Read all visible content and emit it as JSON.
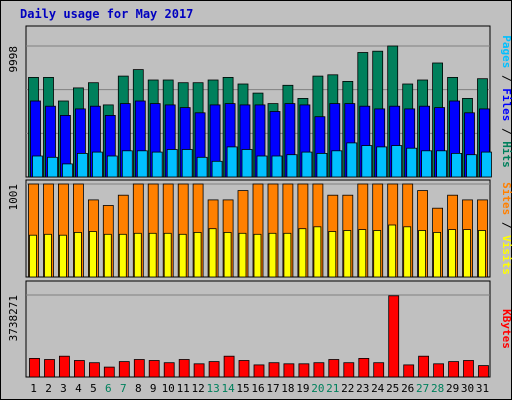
{
  "chart_data": {
    "type": "bar",
    "title": "Daily usage for May 2017",
    "categories": [
      "1",
      "2",
      "3",
      "4",
      "5",
      "6",
      "7",
      "8",
      "9",
      "10",
      "11",
      "12",
      "13",
      "14",
      "15",
      "16",
      "17",
      "18",
      "19",
      "20",
      "21",
      "22",
      "23",
      "24",
      "25",
      "26",
      "27",
      "28",
      "29",
      "30",
      "31"
    ],
    "weekend_days": [
      "6",
      "7",
      "13",
      "14",
      "20",
      "21",
      "27",
      "28"
    ],
    "colors": {
      "hits": "#00805c",
      "files": "#0000ff",
      "pages": "#00c0ff",
      "visits": "#ffff00",
      "sites": "#ff8000",
      "kbytes": "#ff0000",
      "weekday": "#000000",
      "weekend": "#00805c",
      "title": "#0000c0"
    },
    "panels": [
      {
        "name": "hits-files-pages",
        "tick_label": "9998",
        "max": 9998,
        "side_label": [
          {
            "text": "Pages",
            "color": "#00c0ff"
          },
          {
            "text": " / ",
            "color": "#000000"
          },
          {
            "text": "Files",
            "color": "#0000ff"
          },
          {
            "text": " / ",
            "color": "#000000"
          },
          {
            "text": "Hits",
            "color": "#00805c"
          }
        ],
        "series": [
          {
            "name": "Hits",
            "color": "#00805c",
            "values": [
              7600,
              7600,
              5800,
              6800,
              7200,
              5500,
              7700,
              8200,
              7400,
              7400,
              7200,
              7200,
              7400,
              7600,
              7100,
              6400,
              5600,
              7000,
              6000,
              7700,
              7800,
              7300,
              9500,
              9600,
              10200,
              7100,
              7400,
              8700,
              7600,
              6000,
              7500
            ]
          },
          {
            "name": "Files",
            "color": "#0000ff",
            "values": [
              5800,
              5400,
              4700,
              5200,
              5400,
              4700,
              5600,
              5800,
              5600,
              5500,
              5300,
              4900,
              5500,
              5600,
              5500,
              5500,
              5000,
              5600,
              5500,
              4600,
              5600,
              5600,
              5400,
              5200,
              5400,
              5200,
              5400,
              5300,
              5800,
              4900,
              5200
            ]
          },
          {
            "name": "Pages",
            "color": "#00c0ff",
            "values": [
              1600,
              1500,
              1000,
              1800,
              1900,
              1600,
              2000,
              2000,
              1900,
              2100,
              2100,
              1500,
              1200,
              2300,
              2100,
              1600,
              1600,
              1700,
              1900,
              1800,
              2000,
              2600,
              2400,
              2300,
              2400,
              2200,
              2000,
              2000,
              1800,
              1700,
              1900
            ]
          }
        ]
      },
      {
        "name": "visits-sites",
        "tick_label": "1001",
        "max": 1001,
        "side_label": [
          {
            "text": "Sites",
            "color": "#ff8000"
          },
          {
            "text": " / ",
            "color": "#000000"
          },
          {
            "text": "Visits",
            "color": "#ffff00"
          }
        ],
        "series": [
          {
            "name": "Sites",
            "color": "#ff8000",
            "values": [
              1001,
              1001,
              1001,
              1001,
              830,
              770,
              880,
              1001,
              1001,
              1001,
              1001,
              1001,
              830,
              830,
              930,
              1001,
              1001,
              1001,
              1001,
              1001,
              880,
              880,
              1001,
              1001,
              1001,
              1001,
              930,
              740,
              880,
              830,
              830
            ]
          },
          {
            "name": "Visits",
            "color": "#ffff00",
            "values": [
              450,
              460,
              450,
              480,
              490,
              460,
              460,
              470,
              470,
              470,
              460,
              480,
              520,
              480,
              470,
              460,
              470,
              470,
              520,
              540,
              490,
              500,
              510,
              500,
              560,
              540,
              500,
              480,
              510,
              510,
              500
            ]
          }
        ]
      },
      {
        "name": "kbytes",
        "tick_label": "3738271",
        "max": 3738271,
        "side_label": [
          {
            "text": "KBytes",
            "color": "#ff0000"
          }
        ],
        "series": [
          {
            "name": "KBytes",
            "color": "#ff0000",
            "values": [
              850000,
              800000,
              950000,
              750000,
              650000,
              450000,
              700000,
              800000,
              750000,
              650000,
              800000,
              600000,
              700000,
              950000,
              750000,
              550000,
              650000,
              600000,
              600000,
              650000,
              800000,
              650000,
              850000,
              650000,
              3700000,
              550000,
              950000,
              600000,
              700000,
              750000,
              520000
            ]
          }
        ]
      }
    ]
  }
}
